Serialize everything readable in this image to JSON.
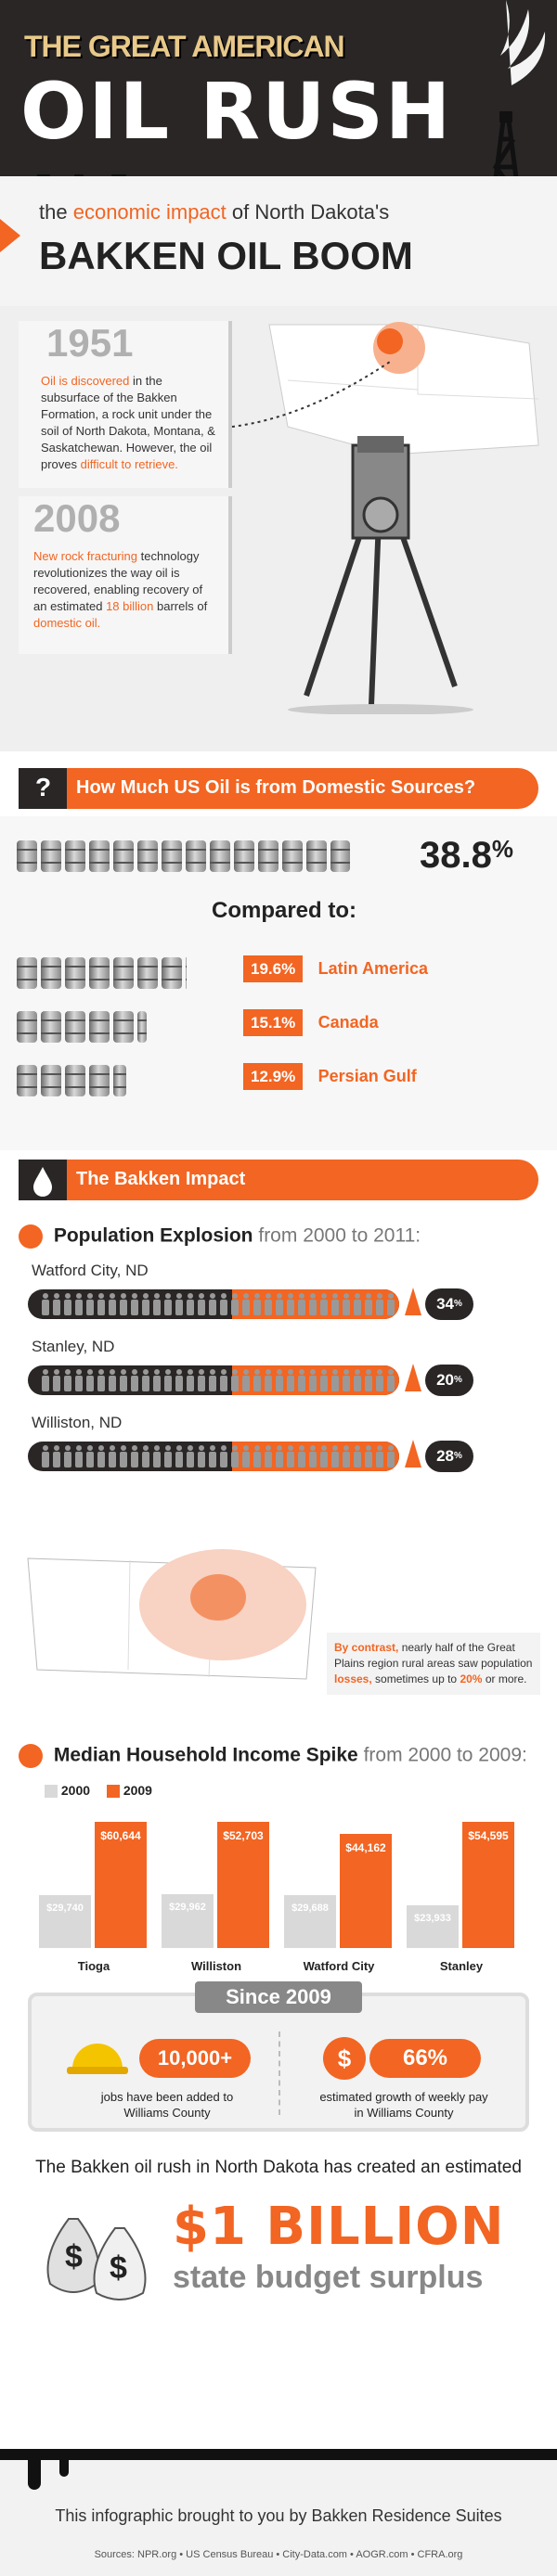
{
  "header": {
    "kicker": "THE GREAT AMERICAN",
    "title": "OIL RUSH",
    "subtitle_pre": "the",
    "subtitle_hl": "economic impact",
    "subtitle_post": "of North Dakota's",
    "headline": "BAKKEN OIL BOOM"
  },
  "history": {
    "year1": "1951",
    "year1_text_hl": "Oil is discovered",
    "year1_text": "in the subsurface of the Bakken Formation, a rock unit under the soil of North Dakota, Montana, & Saskatchewan. However, the oil proves",
    "year1_text_hl2": "difficult to retrieve.",
    "year2": "2008",
    "year2_text_hl": "New rock fracturing",
    "year2_text": "technology revolutionizes the way oil is recovered, enabling recovery of an estimated",
    "year2_text_hl2": "18 billion",
    "year2_text_post": "barrels of",
    "year2_text_hl3": "domestic oil."
  },
  "domestic": {
    "section_icon": "?",
    "section_title": "How Much US Oil is from Domestic Sources?",
    "main_value": "38.8",
    "main_unit": "%",
    "compared_label": "Compared to:",
    "comparisons": [
      {
        "value": "19.6%",
        "label": "Latin America",
        "share": 0.196
      },
      {
        "value": "15.1%",
        "label": "Canada",
        "share": 0.151
      },
      {
        "value": "12.9%",
        "label": "Persian Gulf",
        "share": 0.129
      }
    ],
    "main_share": 0.388
  },
  "impact": {
    "section_title": "The Bakken Impact",
    "pop_title": "Population Explosion",
    "pop_range": "from 2000 to 2011:",
    "cities": [
      {
        "name": "Watford City, ND",
        "pct": "34",
        "growth": 0.34
      },
      {
        "name": "Stanley, ND",
        "pct": "20",
        "growth": 0.2
      },
      {
        "name": "Williston, ND",
        "pct": "28",
        "growth": 0.28
      }
    ],
    "contrast_hl": "By contrast,",
    "contrast_text": "nearly half of the Great Plains region rural areas saw population",
    "contrast_hl2": "losses,",
    "contrast_text2": "sometimes up to",
    "contrast_hl3": "20%",
    "contrast_text3": "or more."
  },
  "income": {
    "title": "Median Household Income Spike",
    "range": "from 2000 to 2009:",
    "legend_2000": "2000",
    "legend_2009": "2009",
    "color_2000": "#d9d9d9",
    "color_2009": "#f26522",
    "towns": [
      {
        "name": "Tioga",
        "v2000": "$29,740",
        "v2009": "$60,644",
        "n2000": 29740,
        "n2009": 60644
      },
      {
        "name": "Williston",
        "v2000": "$29,962",
        "v2009": "$52,703",
        "n2000": 29962,
        "n2009": 52703
      },
      {
        "name": "Watford City",
        "v2000": "$29,688",
        "v2009": "$44,162",
        "n2000": 29688,
        "n2009": 44162
      },
      {
        "name": "Stanley",
        "v2000": "$23,933",
        "v2009": "$54,595",
        "n2000": 23933,
        "n2009": 54595
      }
    ]
  },
  "since": {
    "label": "Since 2009",
    "jobs_value": "10,000+",
    "jobs_text": "jobs have been added to Williams County",
    "pay_value": "66%",
    "pay_text": "estimated growth of weekly pay in Williams County"
  },
  "surplus": {
    "intro": "The Bakken oil rush in North Dakota has created an estimated",
    "amount": "$1 BILLION",
    "caption": "state budget surplus"
  },
  "footer": {
    "credit": "This infographic brought to you by Bakken Residence Suites",
    "sources": "Sources:  NPR.org  •  US Census Bureau  •  City-Data.com  •  AOGR.com  •  CFRA.org"
  }
}
